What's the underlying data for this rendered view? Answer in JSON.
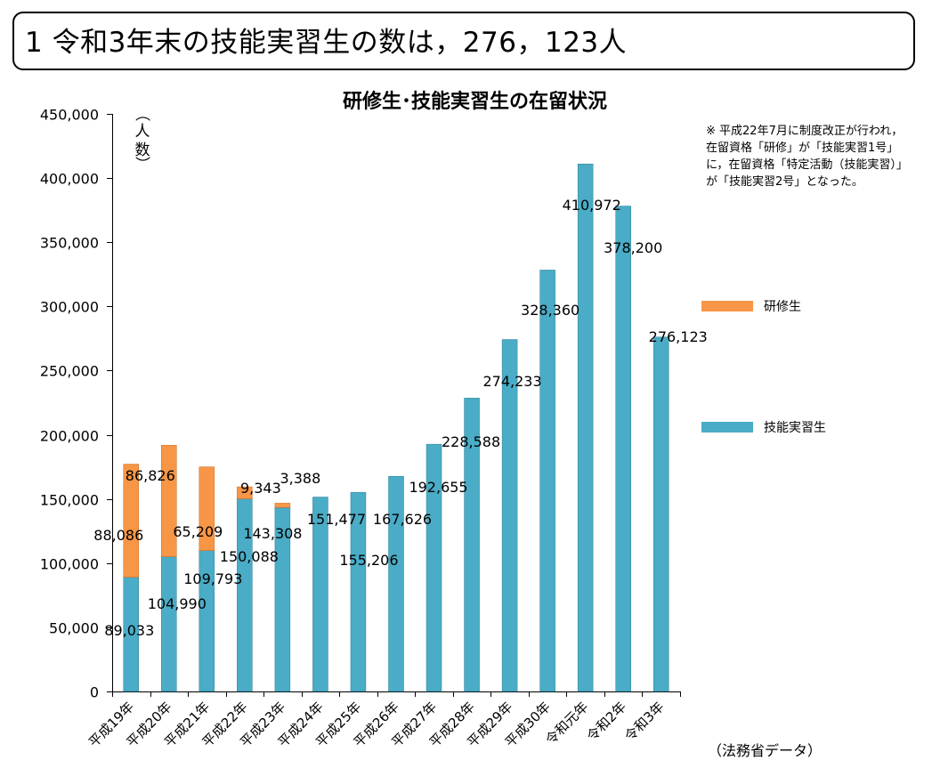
{
  "header": {
    "title": "1 令和3年末の技能実習生の数は，276，123人"
  },
  "note": "※ 平成22年7月に制度改正が行われ，在留資格「研修」が「技能実習1号」に，在留資格「特定活動（技能実習）」が「技能実習2号」となった。",
  "source": "（法務省データ）",
  "colors": {
    "trainee": "#4aacc6",
    "kenshu": "#f79646",
    "grid": "#000000"
  },
  "chart_data": {
    "type": "bar",
    "stacked": true,
    "title": "研修生･技能実習生の在留状況",
    "ylabel": "（人数）",
    "ylabel_chars": [
      "（",
      "人",
      "数",
      "）"
    ],
    "ylim": [
      0,
      450000
    ],
    "yticks": [
      0,
      50000,
      100000,
      150000,
      200000,
      250000,
      300000,
      350000,
      400000,
      450000
    ],
    "ytick_labels": [
      "0",
      "50,000",
      "100,000",
      "150,000",
      "200,000",
      "250,000",
      "300,000",
      "350,000",
      "400,000",
      "450,000"
    ],
    "categories": [
      "平成19年",
      "平成20年",
      "平成21年",
      "平成22年",
      "平成23年",
      "平成24年",
      "平成25年",
      "平成26年",
      "平成27年",
      "平成28年",
      "平成29年",
      "平成30年",
      "令和元年",
      "令和2年",
      "令和3年"
    ],
    "legend_position": "right",
    "series": [
      {
        "name": "技能実習生",
        "color": "#4aacc6",
        "values": [
          89033,
          104990,
          109793,
          150088,
          143308,
          151477,
          155206,
          167626,
          192655,
          228588,
          274233,
          328360,
          410972,
          378200,
          276123
        ],
        "labels": [
          "89,033",
          "104,990",
          "109,793",
          "150,088",
          "143,308",
          "151,477",
          "155,206",
          "167,626",
          "192,655",
          "228,588",
          "274,233",
          "328,360",
          "410,972",
          "378,200",
          "276,123"
        ]
      },
      {
        "name": "研修生",
        "color": "#f79646",
        "values": [
          88086,
          86826,
          65209,
          9343,
          3388,
          null,
          null,
          null,
          null,
          null,
          null,
          null,
          null,
          null,
          null
        ],
        "labels": [
          "88,086",
          "86,826",
          "65,209",
          "9,343",
          "3,388",
          null,
          null,
          null,
          null,
          null,
          null,
          null,
          null,
          null,
          null
        ]
      }
    ]
  }
}
